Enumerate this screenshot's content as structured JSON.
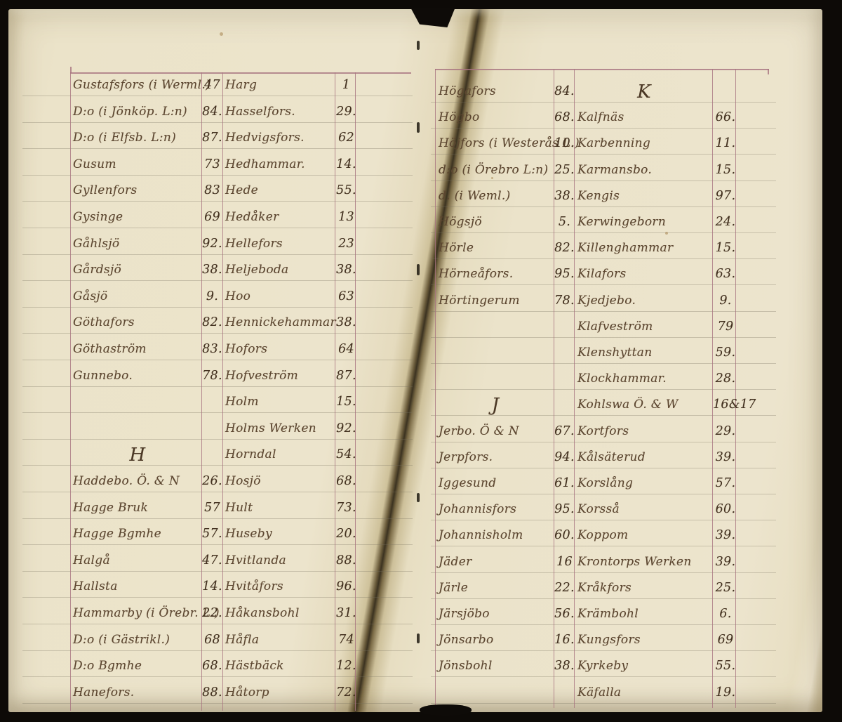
{
  "document": {
    "kind": "Scanned handwritten ledger index spread",
    "language": "Swedish",
    "left_page_letters": "G, H",
    "right_page_letters": "H, J, K"
  },
  "palette": {
    "photo_background": "#0d0a07",
    "paper": "#ece4cc",
    "column_rule": "#a8737f",
    "ruled_line": "#75705c",
    "ink": "#5c4630",
    "ink_numbers": "#42301f",
    "gutter_shadow": "#3b3220"
  },
  "left_page": {
    "rows": [
      {
        "a": "Gustafsfors (i Werml.)",
        "an": "47",
        "b": "Harg",
        "bn": "1"
      },
      {
        "a": "D:o (i Jönköp. L:n)",
        "an": "84.",
        "b": "Hasselfors.",
        "bn": "29."
      },
      {
        "a": "D:o (i Elfsb. L:n)",
        "an": "87.",
        "b": "Hedvigsfors.",
        "bn": "62"
      },
      {
        "a": "Gusum",
        "an": "73",
        "b": "Hedhammar.",
        "bn": "14."
      },
      {
        "a": "Gyllenfors",
        "an": "83",
        "b": "Hede",
        "bn": "55."
      },
      {
        "a": "Gysinge",
        "an": "69",
        "b": "Hedåker",
        "bn": "13"
      },
      {
        "a": "Gåhlsjö",
        "an": "92.",
        "b": "Hellefors",
        "bn": "23"
      },
      {
        "a": "Gårdsjö",
        "an": "38.",
        "b": "Heljeboda",
        "bn": "38."
      },
      {
        "a": "Gåsjö",
        "an": "9.",
        "b": "Hoo",
        "bn": "63"
      },
      {
        "a": "Göthafors",
        "an": "82.",
        "b": "Hennickehammar",
        "bn": "38."
      },
      {
        "a": "Göthaström",
        "an": "83.",
        "b": "Hofors",
        "bn": "64"
      },
      {
        "a": "Gunnebo.",
        "an": "78.",
        "b": "Hofveström",
        "bn": "87."
      },
      {
        "a": "",
        "an": "",
        "b": "Holm",
        "bn": "15."
      },
      {
        "a": "",
        "an": "",
        "b": "Holms Werken",
        "bn": "92."
      },
      {
        "a": "H",
        "ha": true,
        "an": "",
        "b": "Horndal",
        "bn": "54."
      },
      {
        "a": "Haddebo. Ö. & N",
        "an": "26.",
        "b": "Hosjö",
        "bn": "68."
      },
      {
        "a": "Hagge Bruk",
        "an": "57",
        "b": "Hult",
        "bn": "73."
      },
      {
        "a": "Hagge Bgmhe",
        "an": "57.",
        "b": "Huseby",
        "bn": "20."
      },
      {
        "a": "Halgå",
        "an": "47.",
        "b": "Hvitlanda",
        "bn": "88."
      },
      {
        "a": "Hallsta",
        "an": "14.",
        "b": "Hvitåfors",
        "bn": "96."
      },
      {
        "a": "Hammarby (i Örebr. L.)",
        "an": "22.",
        "b": "Håkansbohl",
        "bn": "31."
      },
      {
        "a": "D:o (i Gästrikl.)",
        "an": "68",
        "b": "Håfla",
        "bn": "74"
      },
      {
        "a": "D:o Bgmhe",
        "an": "68.",
        "b": "Hästbäck",
        "bn": "12."
      },
      {
        "a": "Hanefors.",
        "an": "88.",
        "b": "Håtorp",
        "bn": "72."
      }
    ]
  },
  "right_page": {
    "rows": [
      {
        "a": "Högafors",
        "an": "84.",
        "b": "K",
        "hb": true,
        "bn": ""
      },
      {
        "a": "Högbo",
        "an": "68.",
        "b": "Kalfnäs",
        "bn": "66."
      },
      {
        "a": "Höjfors (i Westerås L.)",
        "an": "10.",
        "b": "Karbenning",
        "bn": "11."
      },
      {
        "a": "d:o (i Örebro L:n)",
        "an": "25.",
        "b": "Karmansbo.",
        "bn": "15."
      },
      {
        "a": "d. (i Weml.)",
        "an": "38.",
        "b": "Kengis",
        "bn": "97."
      },
      {
        "a": "Högsjö",
        "an": "5.",
        "b": "Kerwingeborn",
        "bn": "24."
      },
      {
        "a": "Hörle",
        "an": "82.",
        "b": "Killenghammar",
        "bn": "15."
      },
      {
        "a": "Hörneåfors.",
        "an": "95.",
        "b": "Kilafors",
        "bn": "63."
      },
      {
        "a": "Hörtingerum",
        "an": "78.",
        "b": "Kjedjebo.",
        "bn": "9."
      },
      {
        "a": "",
        "an": "",
        "b": "Klafveström",
        "bn": "79"
      },
      {
        "a": "",
        "an": "",
        "b": "Klenshyttan",
        "bn": "59."
      },
      {
        "a": "",
        "an": "",
        "b": "Klockhammar.",
        "bn": "28."
      },
      {
        "a": "J",
        "ha": true,
        "an": "",
        "b": "Kohlswa Ö. & W",
        "bn": "16&17"
      },
      {
        "a": "Jerbo. Ö & N",
        "an": "67.",
        "b": "Kortfors",
        "bn": "29."
      },
      {
        "a": "Jerpfors.",
        "an": "94.",
        "b": "Kålsäterud",
        "bn": "39."
      },
      {
        "a": "Iggesund",
        "an": "61.",
        "b": "Korslång",
        "bn": "57."
      },
      {
        "a": "Johannisfors",
        "an": "95.",
        "b": "Korsså",
        "bn": "60."
      },
      {
        "a": "Johannisholm",
        "an": "60.",
        "b": "Koppom",
        "bn": "39."
      },
      {
        "a": "Jäder",
        "an": "16",
        "b": "Krontorps Werken",
        "bn": "39."
      },
      {
        "a": "Järle",
        "an": "22.",
        "b": "Kråkfors",
        "bn": "25."
      },
      {
        "a": "Järsjöbo",
        "an": "56.",
        "b": "Krämbohl",
        "bn": "6."
      },
      {
        "a": "Jönsarbo",
        "an": "16.",
        "b": "Kungsfors",
        "bn": "69"
      },
      {
        "a": "Jönsbohl",
        "an": "38.",
        "b": "Kyrkeby",
        "bn": "55."
      },
      {
        "a": "",
        "an": "",
        "b": "Käfalla",
        "bn": "19."
      }
    ]
  }
}
